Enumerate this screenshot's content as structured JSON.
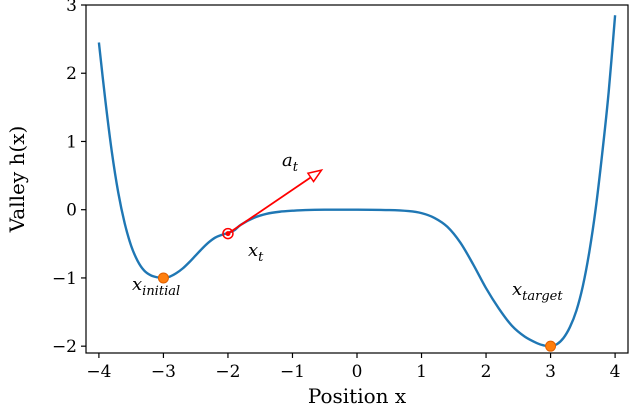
{
  "chart_data": {
    "type": "line",
    "xlabel": "Position x",
    "ylabel": "Valley h(x)",
    "xlim": [
      -4.2,
      4.2
    ],
    "ylim": [
      -2.1,
      3.0
    ],
    "xticks": [
      -4,
      -3,
      -2,
      -1,
      0,
      1,
      2,
      3,
      4
    ],
    "yticks": [
      -2,
      -1,
      0,
      1,
      2,
      3
    ],
    "xtick_labels": [
      "−4",
      "−3",
      "−2",
      "−1",
      "0",
      "1",
      "2",
      "3",
      "4"
    ],
    "ytick_labels": [
      "−2",
      "−1",
      "0",
      "1",
      "2",
      "3"
    ],
    "series": [
      {
        "color": "#1f77b4",
        "x": [
          -4.0,
          -3.9,
          -3.8,
          -3.7,
          -3.6,
          -3.5,
          -3.4,
          -3.3,
          -3.2,
          -3.1,
          -3.0,
          -2.9,
          -2.8,
          -2.7,
          -2.6,
          -2.5,
          -2.4,
          -2.3,
          -2.2,
          -2.1,
          -2.0,
          -1.9,
          -1.8,
          -1.6,
          -1.4,
          -1.2,
          -1.0,
          -0.8,
          -0.5,
          0.0,
          0.5,
          0.8,
          1.0,
          1.2,
          1.4,
          1.6,
          1.8,
          2.0,
          2.2,
          2.4,
          2.6,
          2.8,
          2.9,
          3.0,
          3.1,
          3.2,
          3.3,
          3.4,
          3.5,
          3.6,
          3.7,
          3.8,
          3.9,
          4.0
        ],
        "y": [
          2.45,
          1.6,
          0.85,
          0.25,
          -0.2,
          -0.53,
          -0.75,
          -0.89,
          -0.96,
          -0.99,
          -1.0,
          -0.98,
          -0.93,
          -0.86,
          -0.77,
          -0.67,
          -0.57,
          -0.48,
          -0.41,
          -0.37,
          -0.34,
          -0.3,
          -0.22,
          -0.12,
          -0.06,
          -0.03,
          -0.015,
          -0.005,
          0.0,
          0.0,
          -0.005,
          -0.02,
          -0.05,
          -0.12,
          -0.25,
          -0.48,
          -0.8,
          -1.15,
          -1.45,
          -1.7,
          -1.86,
          -1.96,
          -1.99,
          -2.0,
          -1.97,
          -1.88,
          -1.72,
          -1.48,
          -1.12,
          -0.62,
          0.02,
          0.82,
          1.72,
          2.85
        ]
      }
    ],
    "points": {
      "initial": {
        "x": -3.0,
        "y": -1.0,
        "color": "#ff7f0e"
      },
      "current": {
        "x": -2.0,
        "y": -0.35,
        "color": "#ff0000"
      },
      "target": {
        "x": 3.0,
        "y": -2.0,
        "color": "#ff7f0e"
      }
    },
    "arrow": {
      "x0": -2.0,
      "y0": -0.35,
      "x1": -0.55,
      "y1": 0.58,
      "color": "#ff0000"
    },
    "annotations": {
      "a_base": "a",
      "a_sub": "t",
      "xt_base": "x",
      "xt_sub": "t",
      "xinit_base": "x",
      "xinit_sub": "initial",
      "xtarget_base": "x",
      "xtarget_sub": "target"
    }
  }
}
